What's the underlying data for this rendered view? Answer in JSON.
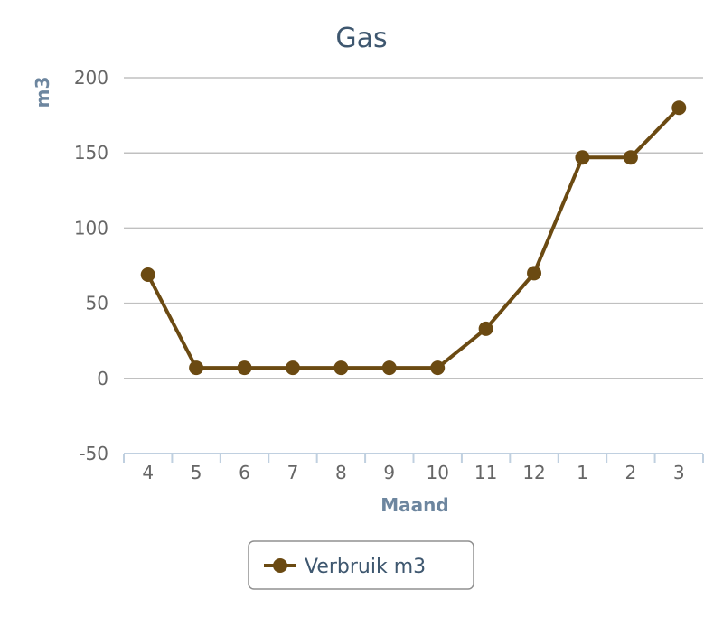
{
  "chart_data": {
    "type": "line",
    "title": "Gas",
    "xlabel": "Maand",
    "ylabel": "m3",
    "categories": [
      "4",
      "5",
      "6",
      "7",
      "8",
      "9",
      "10",
      "11",
      "12",
      "1",
      "2",
      "3"
    ],
    "series": [
      {
        "name": "Verbruik m3",
        "values": [
          69,
          7,
          7,
          7,
          7,
          7,
          7,
          33,
          70,
          147,
          147,
          180
        ],
        "color": "#6b4a12"
      }
    ],
    "ylim": [
      -50,
      200
    ],
    "yticks": [
      "-50",
      "0",
      "50",
      "100",
      "150",
      "200"
    ],
    "grid": true,
    "legend_position": "bottom-center"
  }
}
